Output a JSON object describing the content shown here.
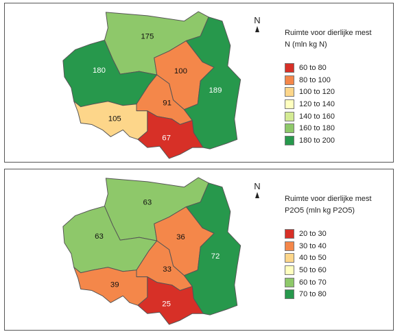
{
  "maps": [
    {
      "legend": {
        "title_line1": "Ruimte voor dierlijke mest",
        "title_line2": "N (mln kg N)",
        "classes": [
          {
            "label": "60 to  80",
            "color": "#d73027"
          },
          {
            "label": "80 to 100",
            "color": "#f4874a"
          },
          {
            "label": "100 to 120",
            "color": "#fdd68a"
          },
          {
            "label": "120 to 140",
            "color": "#ffffbf"
          },
          {
            "label": "140 to 160",
            "color": "#d4eb94"
          },
          {
            "label": "160 to 180",
            "color": "#8ec86a"
          },
          {
            "label": "180 to 200",
            "color": "#27984c"
          }
        ]
      },
      "north_label": "N",
      "regions": [
        {
          "id": "north",
          "value": "175",
          "class": 5
        },
        {
          "id": "west",
          "value": "180",
          "class": 6
        },
        {
          "id": "central",
          "value": "100",
          "class": 1
        },
        {
          "id": "center",
          "value": "91",
          "class": 1
        },
        {
          "id": "east",
          "value": "189",
          "class": 6
        },
        {
          "id": "southwest",
          "value": "105",
          "class": 2
        },
        {
          "id": "south",
          "value": "67",
          "class": 0
        }
      ]
    },
    {
      "legend": {
        "title_line1": "Ruimte voor dierlijke mest",
        "title_line2": "P2O5 (mln kg P2O5)",
        "classes": [
          {
            "label": "20 to 30",
            "color": "#d73027"
          },
          {
            "label": "30 to 40",
            "color": "#f4874a"
          },
          {
            "label": "40 to 50",
            "color": "#fdd68a"
          },
          {
            "label": "50 to 60",
            "color": "#ffffbf"
          },
          {
            "label": "60 to 70",
            "color": "#8ec86a"
          },
          {
            "label": "70 to 80",
            "color": "#27984c"
          }
        ]
      },
      "north_label": "N",
      "regions": [
        {
          "id": "north",
          "value": "63",
          "class": 4
        },
        {
          "id": "west",
          "value": "63",
          "class": 4
        },
        {
          "id": "central",
          "value": "36",
          "class": 1
        },
        {
          "id": "center",
          "value": "33",
          "class": 1
        },
        {
          "id": "east",
          "value": "72",
          "class": 5
        },
        {
          "id": "southwest",
          "value": "39",
          "class": 1
        },
        {
          "id": "south",
          "value": "25",
          "class": 0
        }
      ]
    }
  ]
}
